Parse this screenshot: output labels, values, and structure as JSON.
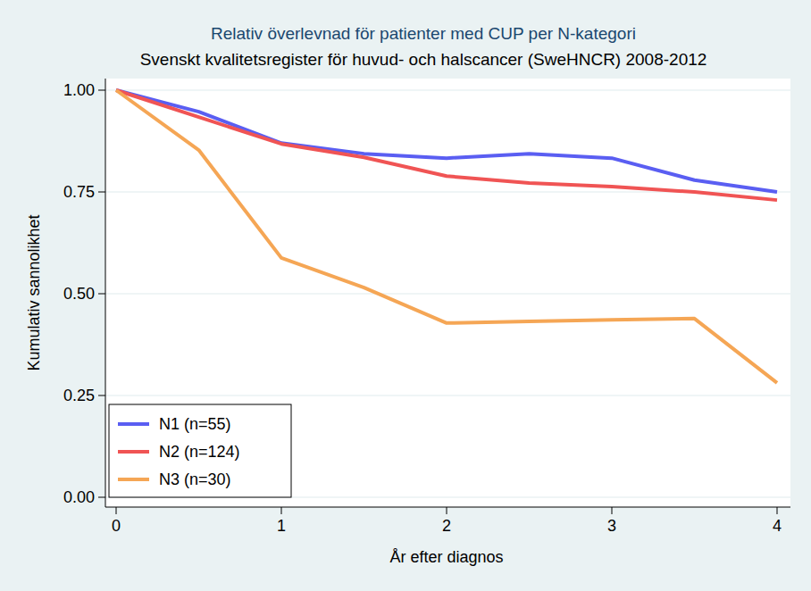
{
  "chart_data": {
    "type": "line",
    "title": "Relativ överlevnad för patienter med CUP per N-kategori",
    "subtitle": "Svenskt kvalitetsregister för huvud- och halscancer (SweHNCR) 2008-2012",
    "x_label": "År efter diagnos",
    "y_label": "Kumulativ sannolikhet",
    "x": [
      0,
      0.5,
      1,
      1.5,
      2,
      2.5,
      3,
      3.5,
      4
    ],
    "series": [
      {
        "name": "N1 (n=55)",
        "color": "#5a5ef2",
        "values": [
          1.0,
          0.947,
          0.87,
          0.844,
          0.833,
          0.844,
          0.833,
          0.779,
          0.75
        ]
      },
      {
        "name": "N2 (n=124)",
        "color": "#f05454",
        "values": [
          1.0,
          0.934,
          0.868,
          0.835,
          0.789,
          0.772,
          0.763,
          0.75,
          0.73
        ]
      },
      {
        "name": "N3 (n=30)",
        "color": "#f5a655",
        "values": [
          1.0,
          0.853,
          0.588,
          0.515,
          0.428,
          0.432,
          0.436,
          0.439,
          0.281
        ]
      }
    ],
    "xlim": [
      0,
      4
    ],
    "ylim": [
      0,
      1
    ],
    "xticks": [
      0,
      1,
      2,
      3,
      4
    ],
    "yticks": [
      {
        "value": 0,
        "label": "0.00"
      },
      {
        "value": 0.25,
        "label": "0.25"
      },
      {
        "value": 0.5,
        "label": "0.50"
      },
      {
        "value": 0.75,
        "label": "0.75"
      },
      {
        "value": 1,
        "label": "1.00"
      }
    ],
    "grid": true,
    "legend": "lower left"
  }
}
